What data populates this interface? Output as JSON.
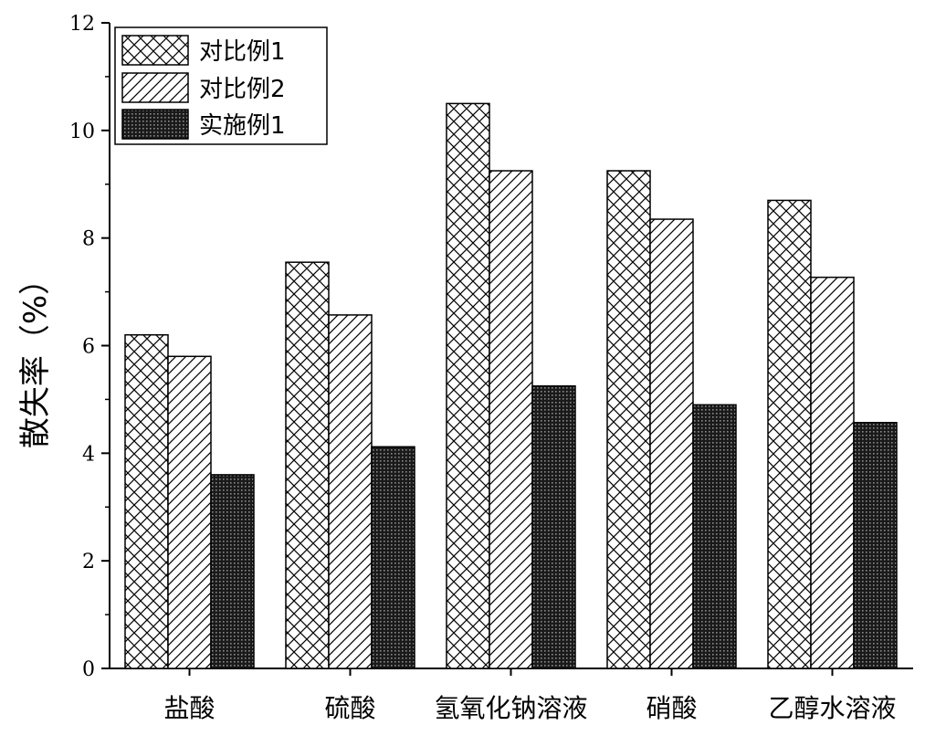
{
  "chart_data": {
    "type": "bar",
    "title": "",
    "xlabel": "",
    "ylabel": "散失率（%）",
    "ylim": [
      0,
      12
    ],
    "yticks": [
      0,
      2,
      4,
      6,
      8,
      10,
      12
    ],
    "grid": false,
    "legend_position": "top-left",
    "categories": [
      "盐酸",
      "硫酸",
      "氢氧化钠溶液",
      "硝酸",
      "乙醇水溶液"
    ],
    "series": [
      {
        "name": "对比例1",
        "pattern": "crosshatch",
        "values": [
          6.2,
          7.55,
          10.5,
          9.25,
          8.7
        ]
      },
      {
        "name": "对比例2",
        "pattern": "diagonal",
        "values": [
          5.8,
          6.57,
          9.25,
          8.35,
          7.27
        ]
      },
      {
        "name": "实施例1",
        "pattern": "dense-dots",
        "values": [
          3.6,
          4.12,
          5.25,
          4.9,
          4.57
        ]
      }
    ]
  }
}
